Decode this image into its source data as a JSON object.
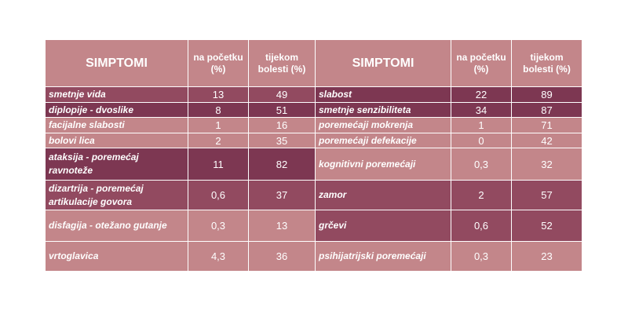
{
  "colors": {
    "header": "#c3868a",
    "dark": "#7d3752",
    "medium": "#924a60",
    "light": "#c3868a",
    "text": "#ffffff"
  },
  "header": {
    "symptoms": "SIMPTOMI",
    "at_start": "na početku (%)",
    "during": "tijekom bolesti (%)"
  },
  "rows": [
    {
      "left": {
        "name": "smetnje vida",
        "start": "13",
        "during": "49"
      },
      "right": {
        "name": "slabost",
        "start": "22",
        "during": "89"
      }
    },
    {
      "left": {
        "name": "diplopije - dvoslike",
        "start": "8",
        "during": "51"
      },
      "right": {
        "name": "smetnje senzibiliteta",
        "start": "34",
        "during": "87"
      }
    },
    {
      "left": {
        "name": "facijalne slabosti",
        "start": "1",
        "during": "16"
      },
      "right": {
        "name": "poremećaji mokrenja",
        "start": "1",
        "during": "71"
      }
    },
    {
      "left": {
        "name": "bolovi lica",
        "start": "2",
        "during": "35"
      },
      "right": {
        "name": "poremećaji defekacije",
        "start": "0",
        "during": "42"
      }
    },
    {
      "left": {
        "name": "ataksija - poremećaj ravnoteže",
        "start": "11",
        "during": "82"
      },
      "right": {
        "name": "kognitivni poremećaji",
        "start": "0,3",
        "during": "32"
      }
    },
    {
      "left": {
        "name": "dizartrija - poremećaj artikulacije govora",
        "start": "0,6",
        "during": "37"
      },
      "right": {
        "name": "zamor",
        "start": "2",
        "during": "57"
      }
    },
    {
      "left": {
        "name": "disfagija -  otežano gutanje",
        "start": "0,3",
        "during": "13"
      },
      "right": {
        "name": "grčevi",
        "start": "0,6",
        "during": "52"
      }
    },
    {
      "left": {
        "name": "vrtoglavica",
        "start": "4,3",
        "during": "36"
      },
      "right": {
        "name": "psihijatrijski poremećaji",
        "start": "0,3",
        "during": "23"
      }
    }
  ]
}
